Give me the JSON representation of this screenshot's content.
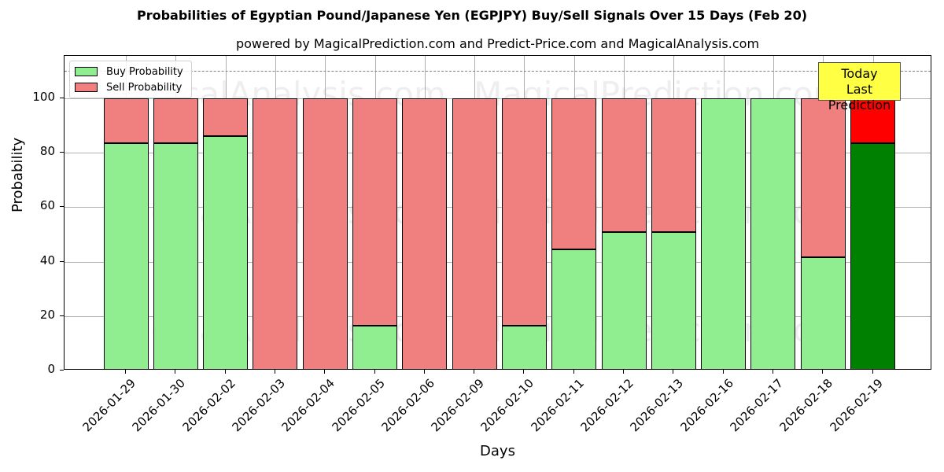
{
  "chart_data": {
    "type": "bar",
    "stacked": true,
    "title": "Probabilities of Egyptian Pound/Japanese Yen (EGPJPY) Buy/Sell Signals Over 15 Days (Feb 20)",
    "subtitle": "powered by MagicalPrediction.com and Predict-Price.com and MagicalAnalysis.com",
    "xlabel": "Days",
    "ylabel": "Probability",
    "ylim": [
      0,
      115.6
    ],
    "yticks": [
      0,
      20,
      40,
      60,
      80,
      100
    ],
    "grid": true,
    "legend_position": "upper left",
    "reference_line": {
      "y": 110,
      "style": "dashed",
      "color": "#808080"
    },
    "categories": [
      "2026-01-29",
      "2026-01-30",
      "2026-02-02",
      "2026-02-03",
      "2026-02-04",
      "2026-02-05",
      "2026-02-06",
      "2026-02-09",
      "2026-02-10",
      "2026-02-11",
      "2026-02-12",
      "2026-02-13",
      "2026-02-16",
      "2026-02-17",
      "2026-02-18",
      "2026-02-19"
    ],
    "series": [
      {
        "name": "Buy Probability",
        "color": "#90ee90",
        "values": [
          83.5,
          83.5,
          86.1,
          0,
          0,
          16.5,
          0,
          0,
          16.5,
          44.5,
          50.9,
          50.9,
          100,
          100,
          41.6,
          83.5
        ]
      },
      {
        "name": "Sell Probability",
        "color": "#f08080",
        "values": [
          16.5,
          16.5,
          13.9,
          100,
          100,
          83.5,
          100,
          100,
          83.5,
          55.5,
          49.1,
          49.1,
          0,
          0,
          58.4,
          16.5
        ]
      }
    ],
    "highlight": {
      "index": 15,
      "buy_color": "#008000",
      "sell_color": "#ff0000"
    },
    "annotation": {
      "line1": "Today",
      "line2": "Last Prediction",
      "background": "#ffff44"
    },
    "watermarks": [
      "MagicalAnalysis.com",
      "MagicalPrediction.com"
    ]
  }
}
